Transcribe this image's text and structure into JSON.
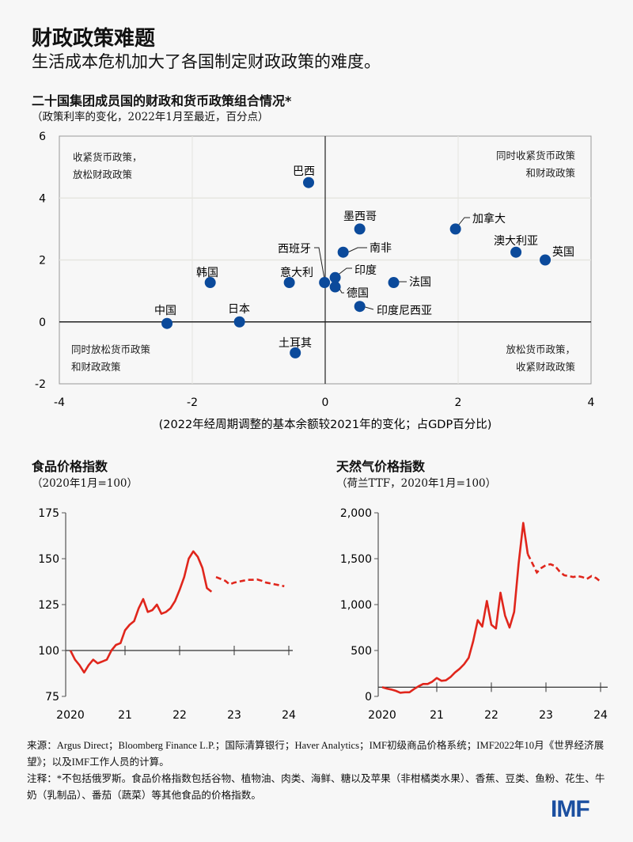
{
  "header": {
    "title": "财政政策难题",
    "subtitle": "生活成本危机加大了各国制定财政政策的难度。"
  },
  "colors": {
    "point": "#0b4a9b",
    "line": "#e0261c",
    "logo": "#1b4fa0"
  },
  "chart_data": [
    {
      "type": "scatter",
      "title": "二十国集团成员国的财政和货币政策组合情况*",
      "subtitle": "（政策利率的变化，2022年1月至最近，百分点）",
      "xlabel": "(2022年经周期调整的基本余额较2021年的变化；占GDP百分比)",
      "xlim": [
        -4,
        4
      ],
      "ylim": [
        -2,
        6
      ],
      "xticks": [
        "-4",
        "-2",
        "0",
        "2",
        "4"
      ],
      "yticks": [
        "-2",
        "0",
        "2",
        "4",
        "6"
      ],
      "grid": true,
      "quadrants": {
        "top_left": [
          "收紧货币政策，",
          "放松财政政策"
        ],
        "top_right": [
          "同时收紧货币政策",
          "和财政政策"
        ],
        "bottom_left": [
          "同时放松货币政策",
          "和财政政策"
        ],
        "bottom_right": [
          "放松货币政策，",
          "收紧财政政策"
        ]
      },
      "points": [
        {
          "label": "巴西",
          "x": -0.25,
          "y": 4.5
        },
        {
          "label": "墨西哥",
          "x": 0.52,
          "y": 3.0
        },
        {
          "label": "加拿大",
          "x": 1.96,
          "y": 3.0
        },
        {
          "label": "澳大利亚",
          "x": 2.87,
          "y": 2.25
        },
        {
          "label": "英国",
          "x": 3.31,
          "y": 2.0
        },
        {
          "label": "南非",
          "x": 0.27,
          "y": 2.25
        },
        {
          "label": "韩国",
          "x": -1.73,
          "y": 1.27
        },
        {
          "label": "意大利",
          "x": -0.54,
          "y": 1.27
        },
        {
          "label": "西班牙",
          "x": -0.01,
          "y": 1.27
        },
        {
          "label": "印度",
          "x": 0.15,
          "y": 1.43
        },
        {
          "label": "德国",
          "x": 0.15,
          "y": 1.13
        },
        {
          "label": "法国",
          "x": 1.03,
          "y": 1.27
        },
        {
          "label": "印度尼西亚",
          "x": 0.52,
          "y": 0.5
        },
        {
          "label": "中国",
          "x": -2.38,
          "y": -0.05
        },
        {
          "label": "日本",
          "x": -1.29,
          "y": 0.0
        },
        {
          "label": "土耳其",
          "x": -0.45,
          "y": -1.0
        }
      ]
    },
    {
      "type": "line",
      "title": "食品价格指数",
      "subtitle": "（2020年1月=100）",
      "xticks": [
        "2020",
        "21",
        "22",
        "23",
        "24"
      ],
      "yticks": [
        "75",
        "100",
        "125",
        "150",
        "175"
      ],
      "ylim": [
        75,
        175
      ],
      "start": "2020-01",
      "actual": [
        100,
        95,
        92,
        88,
        92,
        95,
        93,
        94,
        95,
        100,
        103,
        104,
        111,
        114,
        116,
        123,
        128,
        121,
        122,
        125,
        120,
        121,
        123,
        127,
        133,
        140,
        150,
        154,
        151,
        145,
        134,
        132
      ],
      "projection_start": "2022-09",
      "projection": [
        140,
        139,
        138,
        136,
        137,
        137.5,
        138,
        138.5,
        138.5,
        138.7,
        138,
        137,
        136.5,
        136,
        135.5,
        135
      ]
    },
    {
      "type": "line",
      "title": "天然气价格指数",
      "subtitle": "（荷兰TTF，2020年1月=100）",
      "xticks": [
        "2020",
        "21",
        "22",
        "23",
        "24"
      ],
      "yticks": [
        "0",
        "500",
        "1,000",
        "1,500",
        "2,000"
      ],
      "ylim": [
        0,
        2000
      ],
      "start": "2020-01",
      "actual": [
        100,
        85,
        75,
        60,
        40,
        45,
        45,
        80,
        110,
        135,
        135,
        160,
        200,
        170,
        175,
        210,
        260,
        300,
        350,
        420,
        600,
        830,
        760,
        1040,
        780,
        740,
        1130,
        880,
        750,
        920,
        1450,
        1890,
        1550
      ],
      "projection_start": "2022-09",
      "projection": [
        1550,
        1450,
        1350,
        1400,
        1430,
        1440,
        1420,
        1360,
        1320,
        1310,
        1300,
        1310,
        1300,
        1280,
        1310,
        1290,
        1250
      ]
    }
  ],
  "footer": {
    "source": "来源：Argus Direct；Bloomberg Finance L.P.；国际清算银行；Haver Analytics；IMF初级商品价格系统；IMF2022年10月《世界经济展望》；以及IMF工作人员的计算。",
    "note": "注释：*不包括俄罗斯。食品价格指数包括谷物、植物油、肉类、海鲜、糖以及苹果（非柑橘类水果）、香蕉、豆类、鱼粉、花生、牛奶（乳制品）、番茄（蔬菜）等其他食品的价格指数。",
    "logo": "IMF"
  }
}
